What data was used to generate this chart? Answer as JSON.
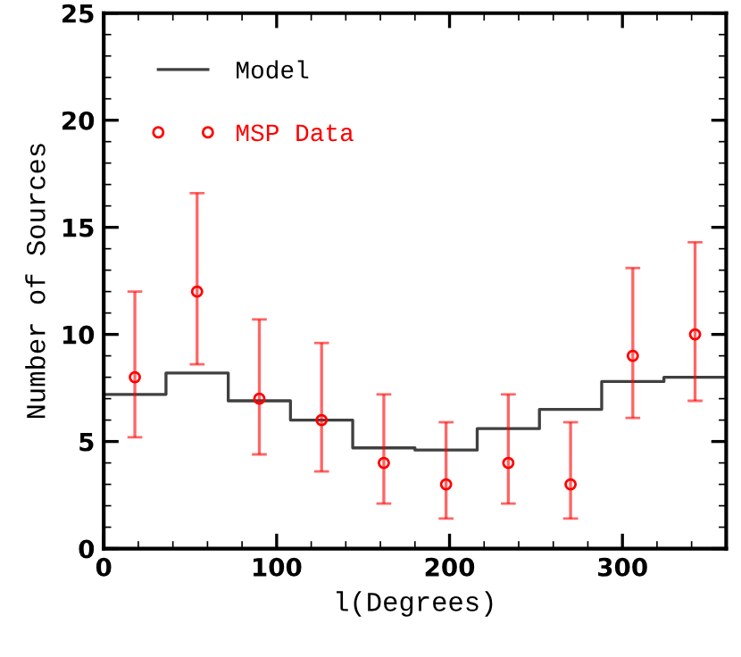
{
  "chart_data": {
    "type": "scatter",
    "xlabel": "l(Degrees)",
    "ylabel": "Number of Sources",
    "xlim": [
      0,
      360
    ],
    "xticks": [
      0,
      100,
      200,
      300
    ],
    "ylim": [
      0,
      25
    ],
    "yticks": [
      0,
      5,
      10,
      15,
      20,
      25
    ],
    "legend": "top left",
    "grid": false,
    "series": [
      {
        "name": "Model",
        "type": "step",
        "marker": "none",
        "color": "#404040",
        "x": [
          0,
          36,
          72,
          108,
          144,
          180,
          216,
          252,
          288,
          324,
          360
        ],
        "values": [
          7.2,
          8.2,
          6.9,
          6.0,
          4.7,
          4.6,
          5.6,
          6.5,
          7.8,
          8.0,
          8.0
        ]
      },
      {
        "name": "MSP Data",
        "marker": "circle",
        "color": "#ff0000",
        "x": [
          18,
          54,
          90,
          126,
          162,
          198,
          234,
          270,
          306,
          342
        ],
        "values": [
          8,
          12,
          7,
          6,
          4,
          3,
          4,
          3,
          9,
          10
        ],
        "errors": [
          [
            5.2,
            12.0
          ],
          [
            8.6,
            16.6
          ],
          [
            4.4,
            10.7
          ],
          [
            3.6,
            9.6
          ],
          [
            2.1,
            7.2
          ],
          [
            1.4,
            5.9
          ],
          [
            2.1,
            7.2
          ],
          [
            1.4,
            5.9
          ],
          [
            6.1,
            13.1
          ],
          [
            6.9,
            14.3
          ]
        ]
      }
    ]
  }
}
